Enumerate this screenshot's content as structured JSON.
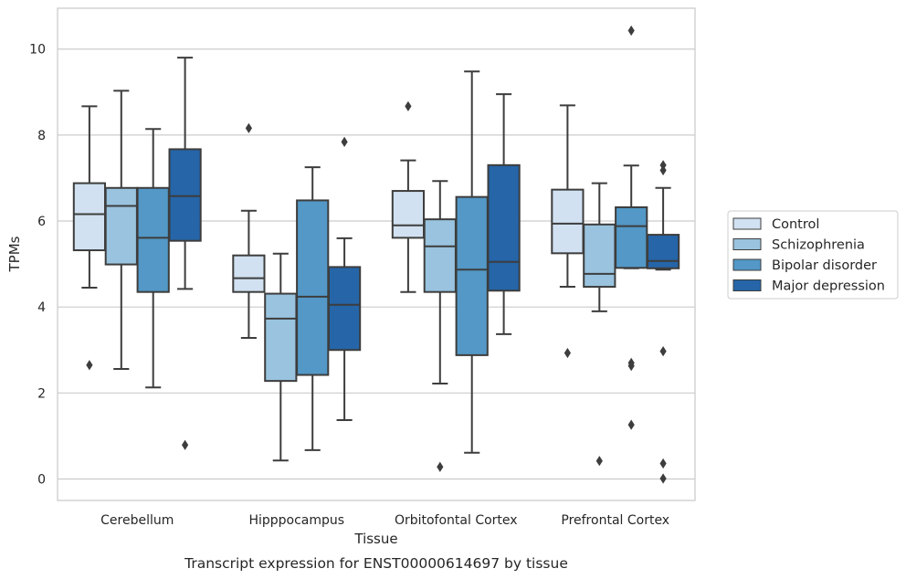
{
  "chart_data": {
    "type": "boxplot",
    "xlabel": "Tissue",
    "ylabel": "TPMs",
    "caption": "Transcript expression for ENST00000614697 by tissue",
    "ylim": [
      -0.5,
      10.95
    ],
    "yticks": [
      0,
      2,
      4,
      6,
      8,
      10
    ],
    "grid": "horizontal",
    "legend_position": "right",
    "categories": [
      "Cerebellum",
      "Hipppocampus",
      "Orbitofontal Cortex",
      "Prefrontal Cortex"
    ],
    "series": [
      {
        "name": "Control",
        "color": "#d1e1f1",
        "boxes": [
          {
            "whislo": 4.45,
            "q1": 5.32,
            "med": 6.16,
            "q3": 6.88,
            "whishi": 8.67,
            "fliers": [
              2.65
            ]
          },
          {
            "whislo": 3.28,
            "q1": 4.35,
            "med": 4.67,
            "q3": 5.2,
            "whishi": 6.24,
            "fliers": [
              8.16
            ]
          },
          {
            "whislo": 4.35,
            "q1": 5.61,
            "med": 5.9,
            "q3": 6.7,
            "whishi": 7.41,
            "fliers": [
              8.67
            ]
          },
          {
            "whislo": 4.47,
            "q1": 5.25,
            "med": 5.94,
            "q3": 6.73,
            "whishi": 8.69,
            "fliers": [
              2.93
            ]
          }
        ]
      },
      {
        "name": "Schizophrenia",
        "color": "#99c3de",
        "boxes": [
          {
            "whislo": 2.56,
            "q1": 4.99,
            "med": 6.35,
            "q3": 6.77,
            "whishi": 9.03,
            "fliers": []
          },
          {
            "whislo": 0.43,
            "q1": 2.28,
            "med": 3.73,
            "q3": 4.31,
            "whishi": 5.24,
            "fliers": []
          },
          {
            "whislo": 2.22,
            "q1": 4.35,
            "med": 5.41,
            "q3": 6.04,
            "whishi": 6.93,
            "fliers": [
              0.28
            ]
          },
          {
            "whislo": 3.9,
            "q1": 4.47,
            "med": 4.77,
            "q3": 5.92,
            "whishi": 6.88,
            "fliers": [
              0.42
            ]
          }
        ]
      },
      {
        "name": "Bipolar disorder",
        "color": "#5398c6",
        "boxes": [
          {
            "whislo": 2.13,
            "q1": 4.35,
            "med": 5.61,
            "q3": 6.77,
            "whishi": 8.14,
            "fliers": []
          },
          {
            "whislo": 0.67,
            "q1": 2.42,
            "med": 4.24,
            "q3": 6.48,
            "whishi": 7.25,
            "fliers": []
          },
          {
            "whislo": 0.61,
            "q1": 2.88,
            "med": 4.87,
            "q3": 6.56,
            "whishi": 9.48,
            "fliers": []
          },
          {
            "whislo": 4.9,
            "q1": 4.91,
            "med": 5.88,
            "q3": 6.32,
            "whishi": 7.29,
            "fliers": [
              2.7,
              2.63,
              1.26,
              10.43
            ]
          }
        ]
      },
      {
        "name": "Major depression",
        "color": "#2565a8",
        "boxes": [
          {
            "whislo": 4.42,
            "q1": 5.54,
            "med": 6.58,
            "q3": 7.67,
            "whishi": 9.8,
            "fliers": [
              0.79
            ]
          },
          {
            "whislo": 1.37,
            "q1": 3.0,
            "med": 4.05,
            "q3": 4.93,
            "whishi": 5.6,
            "fliers": [
              7.84
            ]
          },
          {
            "whislo": 3.37,
            "q1": 4.38,
            "med": 5.05,
            "q3": 7.3,
            "whishi": 8.95,
            "fliers": []
          },
          {
            "whislo": 4.87,
            "q1": 4.9,
            "med": 5.07,
            "q3": 5.68,
            "whishi": 6.77,
            "fliers": [
              2.97,
              0.36,
              0.01,
              7.3,
              7.18
            ]
          }
        ]
      }
    ]
  }
}
